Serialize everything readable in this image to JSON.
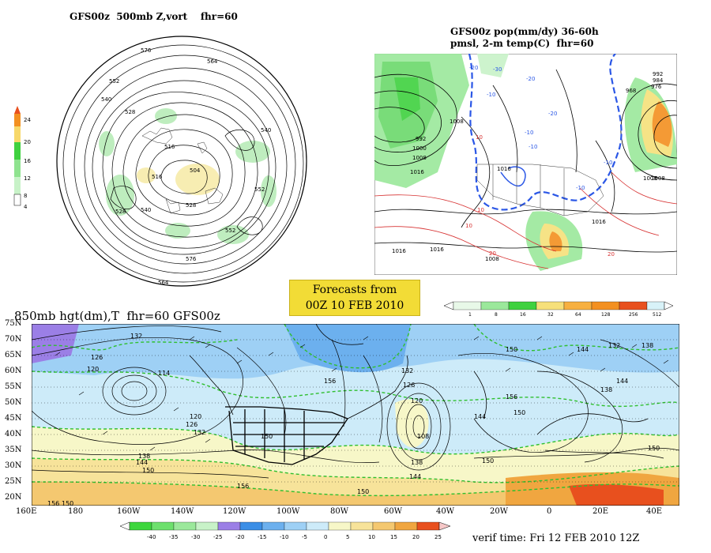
{
  "panels": {
    "vort": {
      "title": "GFS00z  500mb Z,vort    fhr=60",
      "colorbar": [
        "24",
        "20",
        "16",
        "12",
        "8",
        "4"
      ],
      "contour_labels": [
        "576",
        "564",
        "552",
        "540",
        "528",
        "516",
        "504",
        "516",
        "528",
        "540",
        "552",
        "564",
        "576",
        "540",
        "552",
        "528"
      ]
    },
    "precip": {
      "title_line1": "GFS00z pop(mm/dy) 36-60h",
      "title_line2": "pmsl, 2-m temp(C)  fhr=60",
      "colorbar": [
        "1",
        "8",
        "16",
        "32",
        "64",
        "128",
        "256",
        "512"
      ],
      "isobar_labels": [
        "1008",
        "1016",
        "1008",
        "992",
        "1000",
        "1008",
        "1016",
        "1016",
        "1008",
        "992",
        "984",
        "976",
        "968",
        "1008",
        "1016",
        "1016"
      ],
      "temp_labels": [
        "-30",
        "-20",
        "-20",
        "-10",
        "-10",
        "-10",
        "-20",
        "-10",
        "-10",
        "10",
        "10",
        "10",
        "20",
        "20"
      ]
    },
    "forecast_box": {
      "line1": "Forecasts from",
      "line2": "00Z 10 FEB 2010"
    },
    "hgt850": {
      "title": "850mb hgt(dm),T  fhr=60 GFS00z",
      "lat_labels": [
        "75N",
        "70N",
        "65N",
        "60N",
        "55N",
        "50N",
        "45N",
        "40N",
        "35N",
        "30N",
        "25N",
        "20N"
      ],
      "lon_labels": [
        "160E",
        "180",
        "160W",
        "140W",
        "120W",
        "100W",
        "80W",
        "60W",
        "40W",
        "20W",
        "0",
        "20E",
        "40E"
      ],
      "contour_labels": [
        "132",
        "126",
        "120",
        "114",
        "120",
        "126",
        "132",
        "138",
        "144",
        "150",
        "156",
        "120",
        "126",
        "132",
        "138",
        "144",
        "150",
        "156",
        "108",
        "150",
        "144",
        "138",
        "132",
        "150",
        "156",
        "144",
        "150",
        "138",
        "144",
        "150",
        "150",
        "156",
        "150"
      ],
      "colorbar": [
        "-40",
        "-35",
        "-30",
        "-25",
        "-20",
        "-15",
        "-10",
        "-5",
        "0",
        "5",
        "10",
        "15",
        "20",
        "25"
      ],
      "colorbar_colors": [
        "#3ed63e",
        "#6de06d",
        "#9be89b",
        "#c8f2c8",
        "#9b7fe6",
        "#3b8ee6",
        "#6cb0ee",
        "#9ed0f5",
        "#cdebf9",
        "#f7f7c8",
        "#f7e39a",
        "#f4c870",
        "#f0a640",
        "#e8501e"
      ]
    },
    "verif": "verif time: Fri 12 FEB 2010 12Z"
  }
}
